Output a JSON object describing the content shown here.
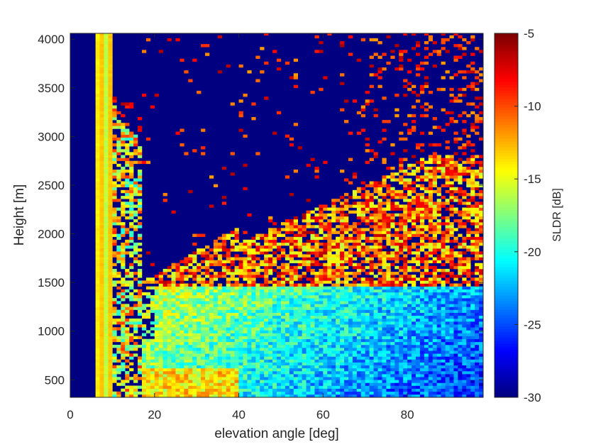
{
  "chart_data": {
    "type": "heatmap",
    "title": "",
    "xlabel": "elevation angle [deg]",
    "ylabel": "Height [m]",
    "colorbar_label": "SLDR [dB]",
    "colormap": "jet",
    "xlim": [
      0,
      98
    ],
    "ylim": [
      320,
      4060
    ],
    "clim": [
      -30,
      -5
    ],
    "xticks": [
      0,
      20,
      40,
      60,
      80
    ],
    "yticks": [
      500,
      1000,
      1500,
      2000,
      2500,
      3000,
      3500,
      4000
    ],
    "cbticks": [
      -30,
      -25,
      -20,
      -15,
      -10,
      -5
    ],
    "x_bin_deg": 1,
    "y_bin_m": 30,
    "data_x_start": 6,
    "background_value": -30,
    "features": [
      {
        "name": "vertical stripe",
        "x_range": [
          6,
          10
        ],
        "values_dB": [
          -14,
          -13,
          -16,
          -13
        ]
      },
      {
        "name": "near-vertical mixed band",
        "x_range": [
          10,
          17
        ],
        "height_range": [
          320,
          3300
        ],
        "value_range_dB": [
          -20,
          -9
        ]
      },
      {
        "name": "low-level cloud layer",
        "x_range": [
          12,
          98
        ],
        "height_range": [
          320,
          1450
        ],
        "value_range_dB": [
          -28,
          -14
        ]
      },
      {
        "name": "mid-level layer",
        "x_range": [
          40,
          98
        ],
        "height_range": [
          1450,
          2800
        ],
        "value_range_dB": [
          -18,
          -7
        ]
      },
      {
        "name": "sparse speckle",
        "x_range": [
          10,
          98
        ],
        "height_range": [
          1800,
          4060
        ],
        "value_range_dB": [
          -13,
          -6
        ]
      }
    ]
  },
  "colors": {
    "background": "#ffffff",
    "axis": "#262626",
    "colormap_low": "#00008f",
    "colormap_high": "#800000"
  }
}
